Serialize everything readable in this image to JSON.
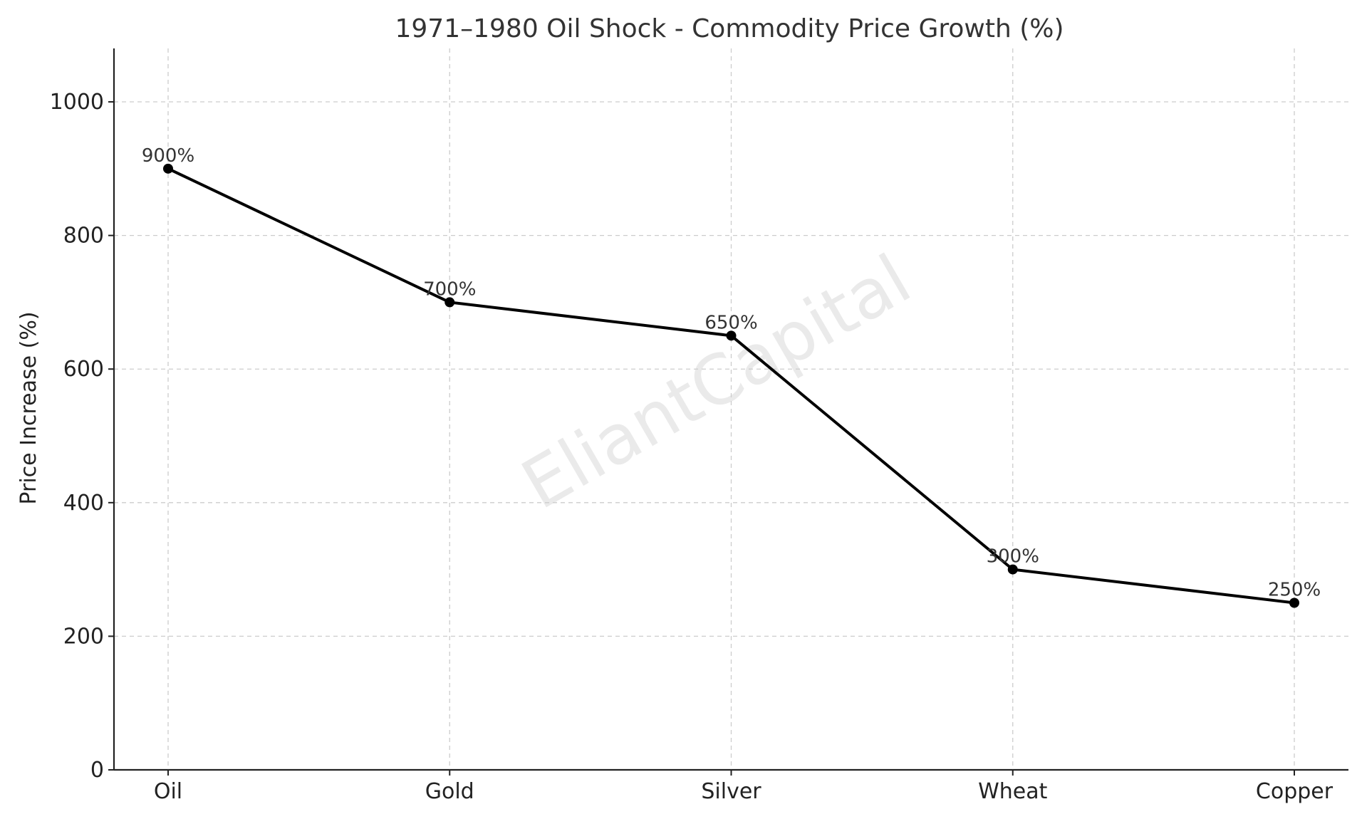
{
  "chart_data": {
    "type": "line",
    "title": "1971–1980 Oil Shock - Commodity Price Growth (%)",
    "xlabel": "",
    "ylabel": "Price Increase (%)",
    "categories": [
      "Oil",
      "Gold",
      "Silver",
      "Wheat",
      "Copper"
    ],
    "series": [
      {
        "values": [
          900,
          700,
          650,
          300,
          250
        ],
        "color": "#000000"
      }
    ],
    "data_labels": [
      "900%",
      "700%",
      "650%",
      "300%",
      "250%"
    ],
    "y_ticks": [
      0,
      200,
      400,
      600,
      800,
      1000
    ],
    "ylim": [
      0,
      1080
    ],
    "grid": true,
    "watermark": "EliantCapital"
  }
}
